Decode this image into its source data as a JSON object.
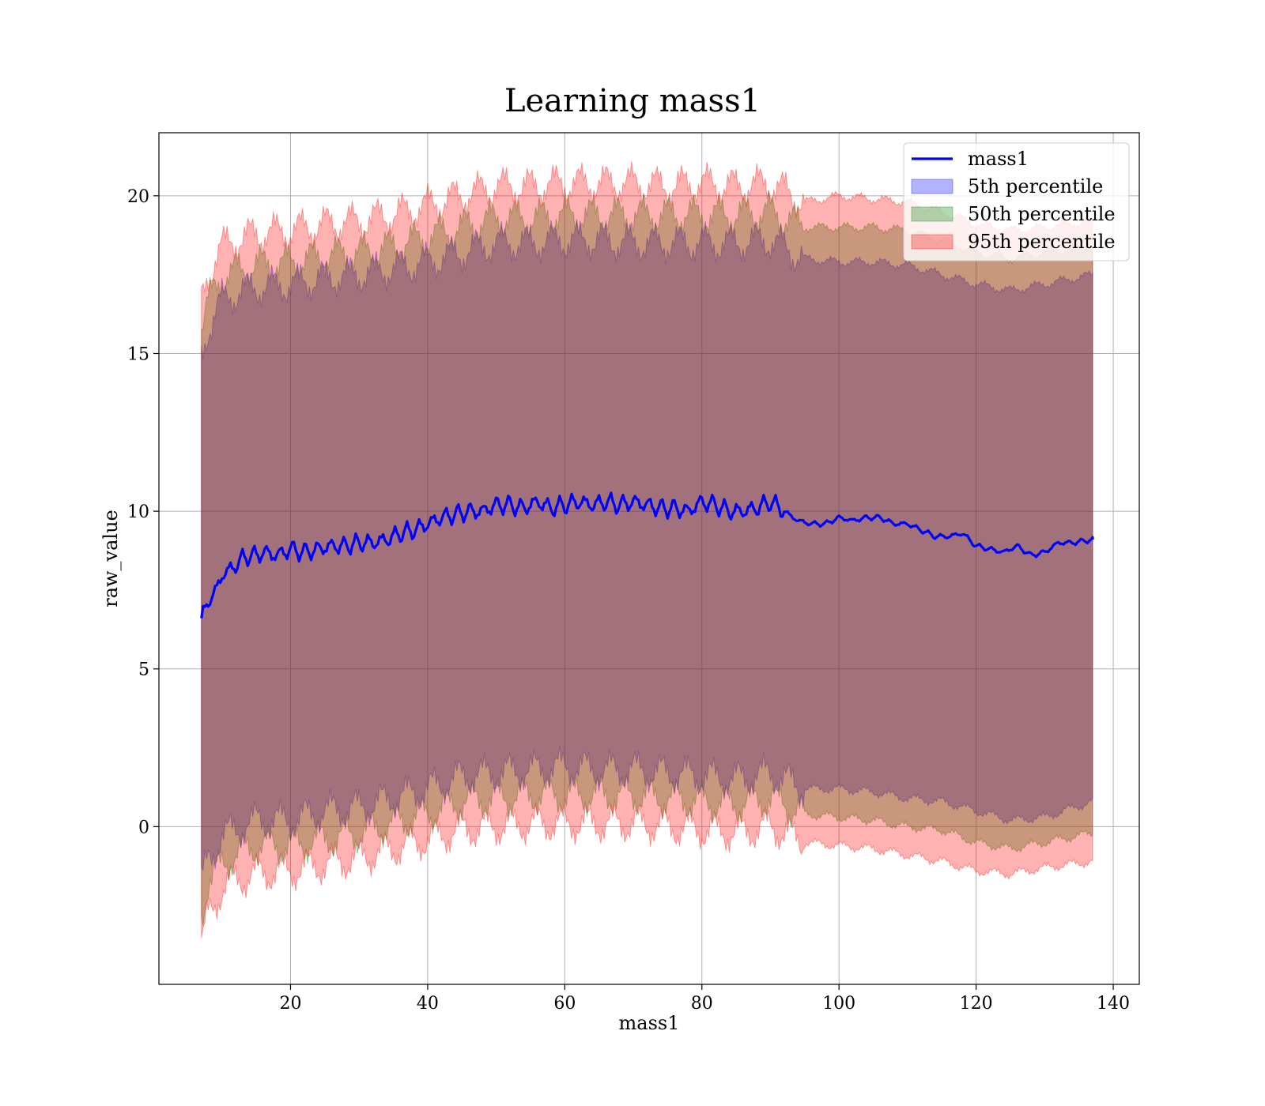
{
  "chart_data": {
    "type": "area",
    "title": "Learning mass1",
    "xlabel": "mass1",
    "ylabel": "raw_value",
    "xlim": [
      0.8,
      143.8
    ],
    "ylim": [
      -5.0,
      22.0
    ],
    "x_ticks": [
      20,
      40,
      60,
      80,
      100,
      120,
      140
    ],
    "y_ticks": [
      0,
      5,
      10,
      15,
      20
    ],
    "grid": true,
    "legend_position": "top-right",
    "line_series": {
      "name": "mass1",
      "color": "#0000ff",
      "x": [
        7,
        8,
        9,
        10,
        11,
        12,
        13,
        14,
        15,
        16,
        18,
        20,
        22,
        24,
        26,
        28,
        30,
        32,
        34,
        36,
        38,
        40,
        42,
        44,
        46,
        48,
        50,
        52,
        54,
        56,
        58,
        60,
        62,
        64,
        66,
        68,
        70,
        72,
        74,
        76,
        78,
        80,
        82,
        84,
        86,
        88,
        90,
        92,
        94,
        96,
        98,
        100,
        102,
        104,
        106,
        108,
        110,
        112,
        114,
        116,
        118,
        120,
        122,
        124,
        126,
        128,
        130,
        132,
        134,
        137
      ],
      "y": [
        6.5,
        7.2,
        7.4,
        8.0,
        8.1,
        8.3,
        8.5,
        8.6,
        8.6,
        8.7,
        8.6,
        8.8,
        8.7,
        8.8,
        8.9,
        8.9,
        9.0,
        9.0,
        9.1,
        9.3,
        9.4,
        9.6,
        9.8,
        9.9,
        10.0,
        10.0,
        10.2,
        10.2,
        10.1,
        10.3,
        10.1,
        10.2,
        10.3,
        10.2,
        10.3,
        10.2,
        10.3,
        10.2,
        10.1,
        10.1,
        10.0,
        10.3,
        10.2,
        10.0,
        10.0,
        10.1,
        10.3,
        10.0,
        9.7,
        9.6,
        9.6,
        9.8,
        9.7,
        9.8,
        9.8,
        9.6,
        9.6,
        9.4,
        9.2,
        9.2,
        9.3,
        8.9,
        8.8,
        8.7,
        8.9,
        8.6,
        8.7,
        9.0,
        9.0,
        9.1
      ]
    },
    "band_series": [
      {
        "name": "5th percentile",
        "color": "#0000ff",
        "x": [
          7,
          8,
          9,
          10,
          12,
          15,
          20,
          25,
          30,
          35,
          40,
          45,
          50,
          55,
          60,
          65,
          70,
          75,
          80,
          85,
          90,
          95,
          100,
          105,
          110,
          115,
          120,
          125,
          130,
          137
        ],
        "upper": [
          14.9,
          15.8,
          16.3,
          16.7,
          16.9,
          17.1,
          17.2,
          17.4,
          17.5,
          17.7,
          17.9,
          18.2,
          18.5,
          18.5,
          18.6,
          18.6,
          18.5,
          18.5,
          18.5,
          18.5,
          18.6,
          18.0,
          17.9,
          17.9,
          17.8,
          17.5,
          17.2,
          17.0,
          17.2,
          17.5
        ],
        "lower": [
          -1.8,
          -1.0,
          -0.7,
          -0.3,
          -0.1,
          0.2,
          0.2,
          0.5,
          0.6,
          0.9,
          1.2,
          1.6,
          1.7,
          1.8,
          1.9,
          1.8,
          1.8,
          1.7,
          1.6,
          1.5,
          1.7,
          1.2,
          1.2,
          1.1,
          0.9,
          0.8,
          0.5,
          0.2,
          0.3,
          0.8
        ]
      },
      {
        "name": "50th percentile",
        "color": "#008000",
        "x": [
          7,
          8,
          9,
          10,
          12,
          15,
          20,
          25,
          30,
          35,
          40,
          45,
          50,
          55,
          60,
          65,
          70,
          75,
          80,
          85,
          90,
          95,
          100,
          105,
          110,
          115,
          120,
          125,
          130,
          137
        ],
        "upper": [
          15.8,
          16.6,
          17.1,
          17.4,
          17.6,
          17.8,
          17.9,
          18.1,
          18.2,
          18.4,
          18.7,
          19.0,
          19.3,
          19.3,
          19.4,
          19.4,
          19.4,
          19.4,
          19.4,
          19.4,
          19.5,
          19.0,
          19.0,
          19.0,
          18.9,
          18.6,
          18.2,
          18.0,
          18.2,
          18.4
        ],
        "lower": [
          -2.8,
          -1.8,
          -1.5,
          -1.2,
          -0.9,
          -0.6,
          -0.6,
          -0.4,
          -0.2,
          0.1,
          0.4,
          0.8,
          0.9,
          1.0,
          1.0,
          1.0,
          1.0,
          0.9,
          0.8,
          0.7,
          0.9,
          0.4,
          0.3,
          0.2,
          0.0,
          -0.1,
          -0.5,
          -0.7,
          -0.5,
          -0.2
        ]
      },
      {
        "name": "95th percentile",
        "color": "#ff0000",
        "x": [
          7,
          8,
          9,
          10,
          12,
          15,
          20,
          25,
          30,
          35,
          40,
          45,
          50,
          55,
          60,
          65,
          70,
          75,
          80,
          85,
          90,
          95,
          100,
          105,
          110,
          115,
          120,
          125,
          130,
          137
        ],
        "upper": [
          16.7,
          17.5,
          18.0,
          18.4,
          18.6,
          18.8,
          18.9,
          19.1,
          19.2,
          19.4,
          19.7,
          20.0,
          20.3,
          20.3,
          20.4,
          20.4,
          20.4,
          20.3,
          20.4,
          20.3,
          20.4,
          19.8,
          20.0,
          19.9,
          19.8,
          19.5,
          19.1,
          18.9,
          19.0,
          19.2
        ],
        "lower": [
          -3.8,
          -2.8,
          -2.4,
          -2.0,
          -1.7,
          -1.5,
          -1.4,
          -1.2,
          -1.0,
          -0.7,
          -0.4,
          -0.1,
          0.0,
          0.1,
          0.1,
          0.1,
          0.1,
          0.0,
          -0.1,
          -0.2,
          0.0,
          -0.5,
          -0.6,
          -0.7,
          -0.9,
          -1.1,
          -1.4,
          -1.5,
          -1.3,
          -1.1
        ]
      }
    ],
    "legend": [
      "mass1",
      "5th percentile",
      "50th percentile",
      "95th percentile"
    ]
  }
}
